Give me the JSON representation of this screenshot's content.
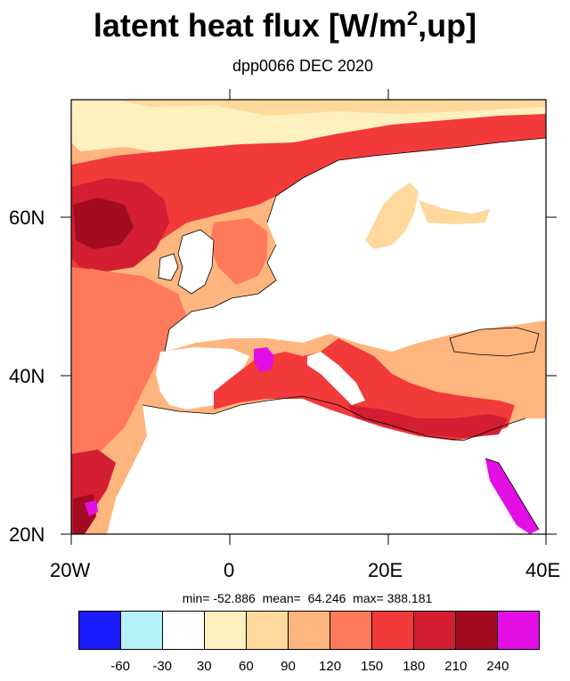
{
  "title": {
    "main": "latent heat flux [W/m",
    "sup": "2",
    "end": ",up]"
  },
  "subtitle": "dpp0066 DEC 2020",
  "axes": {
    "lon_labels": [
      "20W",
      "0",
      "20E",
      "40E"
    ],
    "lat_labels": [
      "20N",
      "40N",
      "60N"
    ]
  },
  "stats_line": "min= -52.886  mean=  64.246  max= 388.181",
  "colorbar": {
    "colors": [
      "#1a1aff",
      "#b4f2f7",
      "#ffffff",
      "#fff0c0",
      "#ffd89c",
      "#ffb57e",
      "#ff7a5a",
      "#f23a3a",
      "#d41e32",
      "#a30b22",
      "#e30ee3"
    ],
    "labels": [
      "-60",
      "-30",
      "30",
      "60",
      "90",
      "120",
      "150",
      "180",
      "210",
      "240"
    ]
  },
  "colors": {
    "land": "#ffffff",
    "ocean_base": "#ffb57e",
    "hot": "#d41e32",
    "very_hot": "#a30b22",
    "red": "#f23a3a",
    "orange": "#ff7a5a",
    "light": "#ffd89c",
    "pale": "#fff0c0",
    "magenta": "#e30ee3"
  }
}
